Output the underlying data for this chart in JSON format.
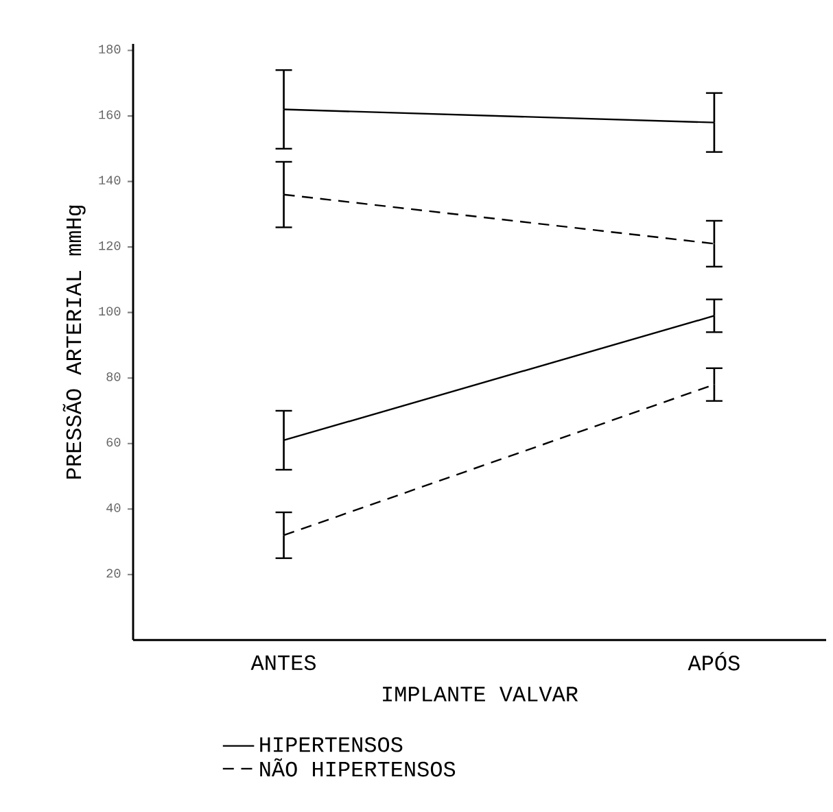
{
  "chart_data": {
    "type": "line",
    "xlabel": "IMPLANTE VALVAR",
    "ylabel": "PRESSÃO ARTERIAL mmHg",
    "categories": [
      "ANTES",
      "APÓS"
    ],
    "series": [
      {
        "name": "HIPERTENSOS",
        "color": "#000000",
        "line_style": "solid",
        "values": [
          162,
          158
        ],
        "errors": [
          12,
          9
        ]
      },
      {
        "name": "NÃO HIPERTENSOS",
        "color": "#000000",
        "line_style": "dashed",
        "values": [
          136,
          121
        ],
        "errors": [
          10,
          7
        ]
      },
      {
        "color": "#000000",
        "line_style": "solid",
        "values": [
          61,
          99
        ],
        "errors": [
          9,
          5
        ]
      },
      {
        "color": "#000000",
        "line_style": "dashed",
        "values": [
          32,
          78
        ],
        "errors": [
          7,
          5
        ]
      }
    ],
    "ylim": [
      0,
      182
    ],
    "yticks": [
      20,
      40,
      60,
      80,
      100,
      120,
      140,
      160,
      180
    ],
    "marker": "none",
    "grid": false,
    "legend": "bottom"
  }
}
